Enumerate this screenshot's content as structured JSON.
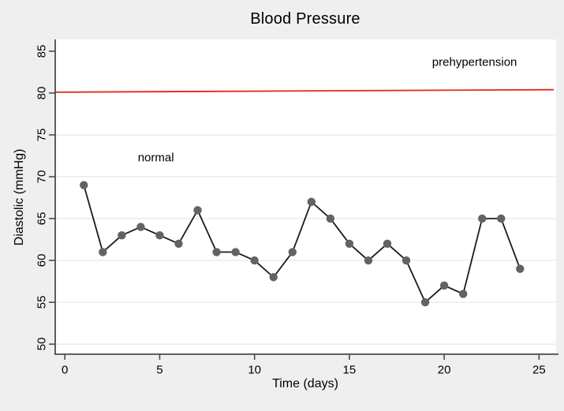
{
  "colors": {
    "background": "#efefef",
    "plot_background": "#ffffff",
    "gridline": "#e7e7e7",
    "axis": "#4a4a4a",
    "series_line": "#1a1a1a",
    "marker_fill": "#636363",
    "reference_line": "#e8241f",
    "text": "#000000"
  },
  "chart_data": {
    "type": "line",
    "title": "Blood Pressure",
    "xlabel": "Time (days)",
    "ylabel": "Diastolic (mmHg)",
    "x": [
      1,
      2,
      3,
      4,
      5,
      6,
      7,
      8,
      9,
      10,
      11,
      12,
      13,
      14,
      15,
      16,
      17,
      18,
      19,
      20,
      21,
      22,
      23,
      24
    ],
    "series": [
      {
        "name": "Diastolic",
        "values": [
          69,
          61,
          63,
          64,
          63,
          62,
          66,
          61,
          61,
          60,
          58,
          61,
          67,
          65,
          62,
          60,
          62,
          60,
          55,
          57,
          56,
          65,
          65,
          59
        ]
      }
    ],
    "reference_line": {
      "label": "prehypertension",
      "value": 80,
      "start": 80.1,
      "end": 80.4
    },
    "annotations": [
      {
        "text": "normal",
        "x": 4.8,
        "y": 72.3
      },
      {
        "text": "prehypertension",
        "x": 21.6,
        "y": 83.7
      }
    ],
    "xticks": [
      0,
      5,
      10,
      15,
      20,
      25
    ],
    "yticks": [
      50,
      55,
      60,
      65,
      70,
      75,
      80,
      85
    ],
    "gridline_values": [
      50,
      55,
      60,
      65,
      70,
      75
    ],
    "xlim": [
      -0.55,
      25.9
    ],
    "ylim": [
      48.8,
      86.4
    ],
    "grid": true,
    "legend": "none"
  }
}
